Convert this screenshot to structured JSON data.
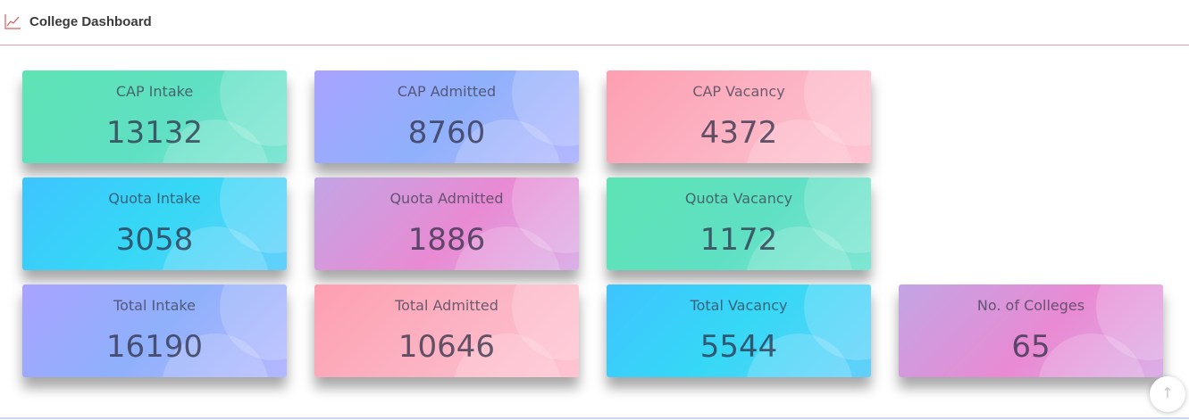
{
  "header": {
    "title": "College Dashboard",
    "icon": "chart-line-icon",
    "icon_color": "#e05a5a"
  },
  "cards": [
    {
      "label": "CAP Intake",
      "value": "13132",
      "theme": "green"
    },
    {
      "label": "CAP Admitted",
      "value": "8760",
      "theme": "purple"
    },
    {
      "label": "CAP Vacancy",
      "value": "4372",
      "theme": "pink"
    },
    {
      "label": "Quota Intake",
      "value": "3058",
      "theme": "blue"
    },
    {
      "label": "Quota Admitted",
      "value": "1886",
      "theme": "magenta"
    },
    {
      "label": "Quota Vacancy",
      "value": "1172",
      "theme": "green"
    },
    {
      "label": "Total Intake",
      "value": "16190",
      "theme": "purple"
    },
    {
      "label": "Total Admitted",
      "value": "10646",
      "theme": "pink"
    },
    {
      "label": "Total Vacancy",
      "value": "5544",
      "theme": "blue"
    },
    {
      "label": "No. of Colleges",
      "value": "65",
      "theme": "magenta"
    }
  ],
  "scroll_top": {
    "icon": "arrow-up-icon",
    "glyph": "↑"
  }
}
